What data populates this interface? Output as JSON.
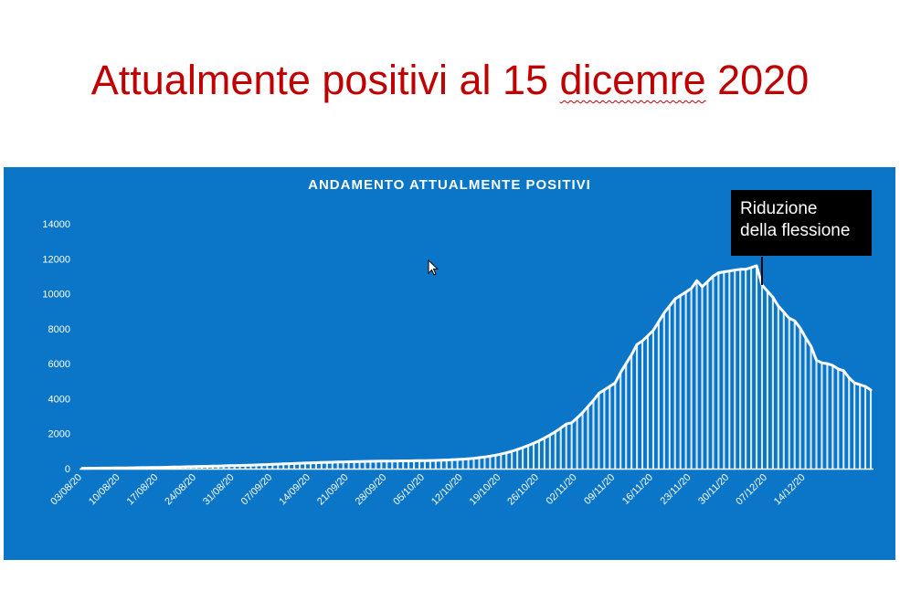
{
  "slide": {
    "title_main": "Attualmente positivi al 15 ",
    "title_underlined": "dicemre",
    "title_end": " 2020"
  },
  "colors": {
    "title": "#c00000",
    "panel": "#0b76c8",
    "series": "#ffffff",
    "callout_bg": "#000000"
  },
  "chart_data": {
    "type": "area",
    "title": "ANDAMENTO ATTUALMENTE POSITIVI",
    "xlabel": "",
    "ylabel": "",
    "ylim": [
      0,
      14000
    ],
    "yticks": [
      0,
      2000,
      4000,
      6000,
      8000,
      10000,
      12000,
      14000
    ],
    "xticks": [
      "03/08/20",
      "10/08/20",
      "17/08/20",
      "24/08/20",
      "31/08/20",
      "07/09/20",
      "14/09/20",
      "21/09/20",
      "28/09/20",
      "05/10/20",
      "12/10/20",
      "19/10/20",
      "26/10/20",
      "02/11/20",
      "09/11/20",
      "16/11/20",
      "23/11/20",
      "30/11/20",
      "07/12/20",
      "14/12/20"
    ],
    "x_start": "03/08/20",
    "x_end": "15/12/20",
    "grid": false,
    "legend": "none",
    "series": [
      {
        "values": [
          20,
          22,
          25,
          28,
          30,
          33,
          35,
          38,
          42,
          46,
          50,
          55,
          60,
          65,
          70,
          75,
          82,
          88,
          95,
          102,
          110,
          118,
          125,
          132,
          140,
          148,
          156,
          165,
          173,
          182,
          190,
          200,
          210,
          220,
          232,
          245,
          258,
          270,
          282,
          295,
          308,
          320,
          330,
          340,
          350,
          358,
          366,
          374,
          382,
          390,
          398,
          405,
          412,
          418,
          423,
          428,
          432,
          436,
          440,
          443,
          446,
          450,
          454,
          458,
          463,
          470,
          478,
          490,
          505,
          522,
          542,
          565,
          592,
          625,
          665,
          712,
          768,
          832,
          905,
          990,
          1090,
          1200,
          1320,
          1450,
          1590,
          1750,
          1920,
          2110,
          2320,
          2550,
          2620,
          2900,
          3200,
          3550,
          3900,
          4300,
          4500,
          4700,
          4900,
          5500,
          6000,
          6500,
          7100,
          7300,
          7600,
          7900,
          8400,
          8900,
          9300,
          9700,
          9900,
          10100,
          10300,
          10750,
          10400,
          10700,
          11000,
          11200,
          11250,
          11300,
          11350,
          11400,
          11400,
          11500,
          11600,
          10500,
          10150,
          9800,
          9300,
          8950,
          8600,
          8450,
          8050,
          7500,
          7000,
          6200,
          6050,
          6000,
          5900,
          5700,
          5600,
          5200,
          4900,
          4800,
          4700,
          4500
        ]
      }
    ],
    "annotations": [
      {
        "text_line1": "Riduzione",
        "text_line2": "della flessione",
        "target_date": "07/12/20"
      }
    ]
  }
}
